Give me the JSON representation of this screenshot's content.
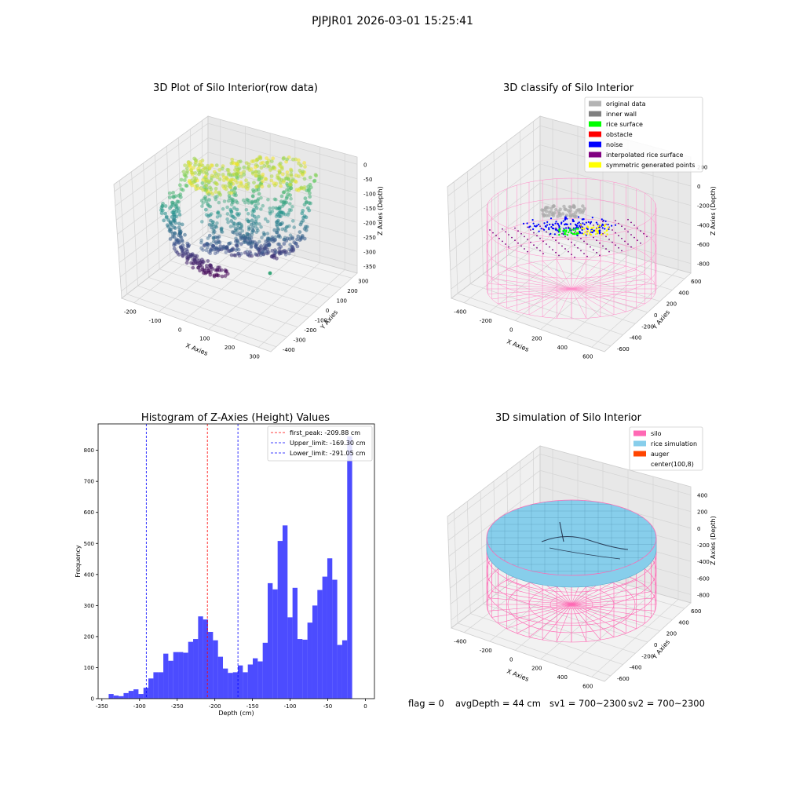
{
  "suptitle": "PJPJR01 2026-03-01 15:25:41",
  "chart_data": [
    {
      "type": "scatter",
      "title": "3D Plot of Silo Interior(row data)",
      "xlabel": "X Axies",
      "ylabel": "Y Axies",
      "zlabel": "Z Axies (Depth)",
      "xticks": [
        "-200",
        "-100",
        "0",
        "100",
        "200",
        "300"
      ],
      "yticks": [
        "-400",
        "-300",
        "-200",
        "-100",
        "0",
        "100",
        "200",
        "300"
      ],
      "zticks": [
        "0",
        "-50",
        "-100",
        "-150",
        "-200",
        "-250",
        "-300",
        "-350"
      ],
      "colormap": "viridis by depth"
    },
    {
      "type": "scatter",
      "title": "3D classify of Silo Interior",
      "xlabel": "X Axies",
      "ylabel": "Y Axies",
      "zlabel": "Z Axies (Depth)",
      "xticks": [
        "-400",
        "-200",
        "0",
        "200",
        "400",
        "600"
      ],
      "yticks": [
        "-600",
        "-400",
        "-200",
        "0",
        "200",
        "400",
        "600"
      ],
      "zticks": [
        "200",
        "0",
        "-200",
        "-400",
        "-600",
        "-800"
      ],
      "legend_position": "top-right",
      "legend": [
        {
          "label": "original data",
          "color": "#b4b4b4"
        },
        {
          "label": "inner wall",
          "color": "#808080"
        },
        {
          "label": "rice surface",
          "color": "#00ff00"
        },
        {
          "label": "obstacle",
          "color": "#ff0000"
        },
        {
          "label": "noise",
          "color": "#0000ff"
        },
        {
          "label": "interpolated rice surface",
          "color": "#800080"
        },
        {
          "label": "symmetric generated points",
          "color": "#ffff00"
        }
      ]
    },
    {
      "type": "bar",
      "title": "Histogram of Z-Axies (Height) Values",
      "xlabel": "Depth (cm)",
      "ylabel": "Frequency",
      "xlim": [
        -355,
        12
      ],
      "ylim": [
        0,
        885
      ],
      "xticks": [
        -350,
        -300,
        -250,
        -200,
        -150,
        -100,
        -50,
        0
      ],
      "yticks": [
        0,
        100,
        200,
        300,
        400,
        500,
        600,
        700,
        800
      ],
      "bar_color": "#0000ff",
      "bin_start": -341,
      "bin_width": 6.6,
      "values": [
        15,
        10,
        8,
        18,
        25,
        30,
        15,
        35,
        65,
        85,
        85,
        145,
        122,
        150,
        150,
        148,
        183,
        192,
        265,
        255,
        215,
        188,
        135,
        97,
        83,
        85,
        107,
        85,
        110,
        130,
        120,
        180,
        372,
        352,
        508,
        558,
        262,
        357,
        192,
        190,
        245,
        300,
        350,
        393,
        452,
        383,
        173,
        188,
        845
      ],
      "vlines": [
        {
          "label": "first_peak: -209.88 cm",
          "x": -209.88,
          "color": "#ff0000"
        },
        {
          "label": "Upper_limit: -169.30 cm",
          "x": -169.3,
          "color": "#0000ff"
        },
        {
          "label": "Lower_limit: -291.05 cm",
          "x": -291.05,
          "color": "#0000ff"
        }
      ],
      "legend_position": "top-right"
    },
    {
      "type": "scatter",
      "title": "3D simulation of Silo Interior",
      "xlabel": "X Axies",
      "ylabel": "Y Axies",
      "zlabel": "Z Axies (Depth)",
      "xticks": [
        "-400",
        "-200",
        "0",
        "200",
        "400",
        "600"
      ],
      "yticks": [
        "-600",
        "-400",
        "-200",
        "0",
        "200",
        "400",
        "600"
      ],
      "zticks": [
        "400",
        "200",
        "0",
        "-200",
        "-400",
        "-600",
        "-800"
      ],
      "legend_position": "top-right",
      "legend": [
        {
          "label": "silo",
          "color": "#ff69b4"
        },
        {
          "label": "rice simulation",
          "color": "#87ceeb"
        },
        {
          "label": "auger",
          "color": "#ff4500"
        },
        {
          "label": "center(100,8)",
          "color": "none"
        }
      ]
    }
  ],
  "footer": {
    "flag": "flag = 0",
    "avg_depth": "avgDepth = 44 cm",
    "sv1": "sv1 = 700~2300",
    "sv2": "sv2 = 700~2300"
  }
}
